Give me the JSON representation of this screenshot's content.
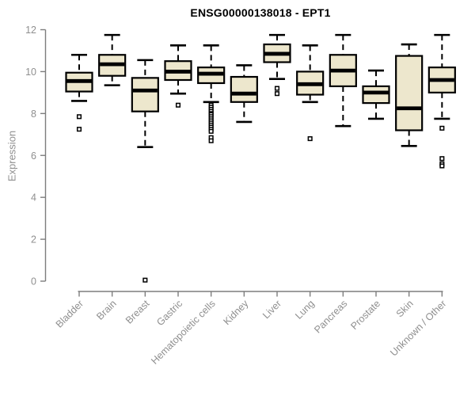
{
  "figure": {
    "title": "ENSG00000138018 - EPT1",
    "ylabel": "Expression"
  },
  "chart_data": {
    "type": "box",
    "title": "ENSG00000138018 - EPT1",
    "xlabel": "",
    "ylabel": "Expression",
    "ylim": [
      0,
      12
    ],
    "yticks": [
      0,
      2,
      4,
      6,
      8,
      10,
      12
    ],
    "grid": false,
    "legend": null,
    "categories": [
      "Bladder",
      "Brain",
      "Breast",
      "Gastric",
      "Hematopoietic cells",
      "Kidney",
      "Liver",
      "Lung",
      "Pancreas",
      "Prostate",
      "Skin",
      "Unknown / Other"
    ],
    "boxes": [
      {
        "category": "Bladder",
        "whisker_low": 8.6,
        "q1": 9.05,
        "median": 9.55,
        "q3": 9.95,
        "whisker_high": 10.8,
        "outliers": [
          7.85,
          7.25
        ]
      },
      {
        "category": "Brain",
        "whisker_low": 9.35,
        "q1": 9.8,
        "median": 10.35,
        "q3": 10.8,
        "whisker_high": 11.75,
        "outliers": []
      },
      {
        "category": "Breast",
        "whisker_low": 6.4,
        "q1": 8.1,
        "median": 9.1,
        "q3": 9.7,
        "whisker_high": 10.55,
        "outliers": [
          0.05
        ]
      },
      {
        "category": "Gastric",
        "whisker_low": 8.95,
        "q1": 9.6,
        "median": 10.0,
        "q3": 10.5,
        "whisker_high": 11.25,
        "outliers": [
          8.4
        ]
      },
      {
        "category": "Hematopoietic cells",
        "whisker_low": 8.55,
        "q1": 9.45,
        "median": 9.9,
        "q3": 10.2,
        "whisker_high": 11.25,
        "outliers": [
          8.4,
          8.3,
          8.2,
          8.1,
          8.0,
          7.95,
          7.85,
          7.75,
          7.65,
          7.55,
          7.45,
          7.35,
          7.25,
          7.15,
          6.85,
          6.7
        ]
      },
      {
        "category": "Kidney",
        "whisker_low": 7.6,
        "q1": 8.55,
        "median": 8.95,
        "q3": 9.75,
        "whisker_high": 10.3,
        "outliers": []
      },
      {
        "category": "Liver",
        "whisker_low": 9.65,
        "q1": 10.45,
        "median": 10.85,
        "q3": 11.3,
        "whisker_high": 11.75,
        "outliers": [
          9.2,
          8.95
        ]
      },
      {
        "category": "Lung",
        "whisker_low": 8.55,
        "q1": 8.9,
        "median": 9.4,
        "q3": 10.0,
        "whisker_high": 11.25,
        "outliers": [
          6.8
        ]
      },
      {
        "category": "Pancreas",
        "whisker_low": 7.4,
        "q1": 9.3,
        "median": 10.05,
        "q3": 10.8,
        "whisker_high": 11.75,
        "outliers": []
      },
      {
        "category": "Prostate",
        "whisker_low": 7.75,
        "q1": 8.5,
        "median": 9.0,
        "q3": 9.3,
        "whisker_high": 10.05,
        "outliers": []
      },
      {
        "category": "Skin",
        "whisker_low": 6.45,
        "q1": 7.2,
        "median": 8.25,
        "q3": 10.75,
        "whisker_high": 11.3,
        "outliers": []
      },
      {
        "category": "Unknown / Other",
        "whisker_low": 7.75,
        "q1": 9.0,
        "median": 9.6,
        "q3": 10.2,
        "whisker_high": 11.75,
        "outliers": [
          7.3,
          5.85,
          5.6,
          5.5
        ]
      }
    ],
    "style": {
      "box_fill": "#EDE7CD",
      "box_stroke": "#000000",
      "median_color": "#000000",
      "whisker_style": "dashed",
      "outlier_marker": "open-square",
      "axis_color": "#7D7D7D",
      "tick_label_color": "#8F8F8F",
      "title_color": "#000000",
      "background": "#FFFFFF"
    }
  }
}
